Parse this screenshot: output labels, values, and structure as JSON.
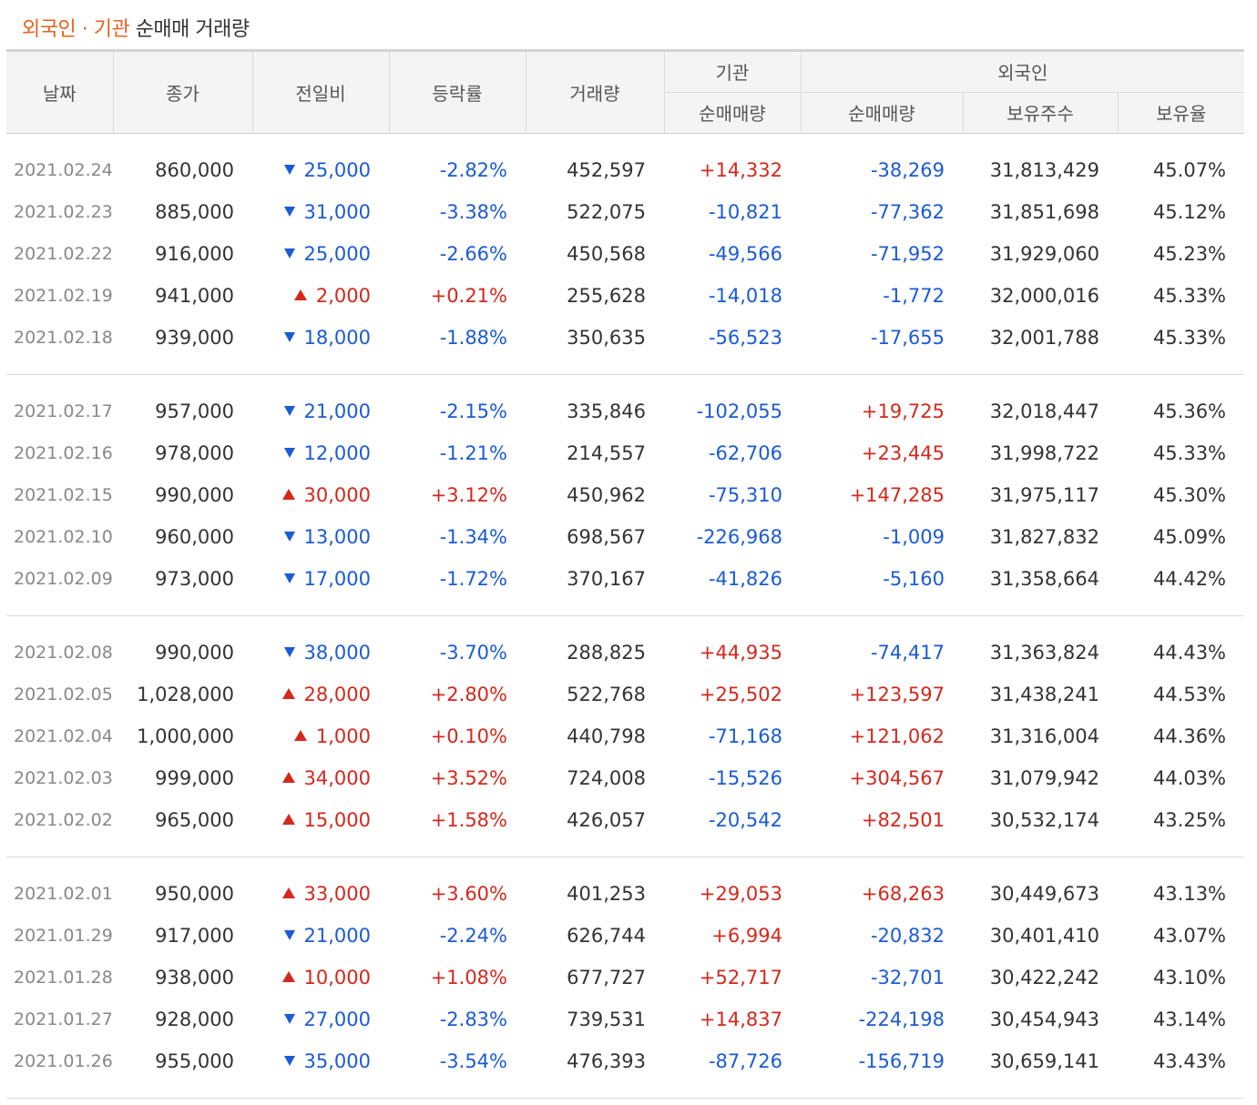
{
  "title": {
    "accent": "외국인 · 기관",
    "rest": "순매매 거래량"
  },
  "colors": {
    "accent": "#e8621c",
    "up": "#d4281c",
    "down": "#1a5bd6"
  },
  "headers": {
    "date": "날짜",
    "close": "종가",
    "change": "전일비",
    "rate": "등락률",
    "volume": "거래량",
    "institution": "기관",
    "institution_net": "순매매량",
    "foreign": "외국인",
    "foreign_net": "순매매량",
    "foreign_shares": "보유주수",
    "foreign_ratio": "보유율"
  },
  "groups": [
    [
      {
        "date": "2021.02.24",
        "close": "860,000",
        "dir": "down",
        "change": "25,000",
        "rate": "-2.82%",
        "volume": "452,597",
        "inst": "+14,332",
        "foreign": "-38,269",
        "shares": "31,813,429",
        "ratio": "45.07%"
      },
      {
        "date": "2021.02.23",
        "close": "885,000",
        "dir": "down",
        "change": "31,000",
        "rate": "-3.38%",
        "volume": "522,075",
        "inst": "-10,821",
        "foreign": "-77,362",
        "shares": "31,851,698",
        "ratio": "45.12%"
      },
      {
        "date": "2021.02.22",
        "close": "916,000",
        "dir": "down",
        "change": "25,000",
        "rate": "-2.66%",
        "volume": "450,568",
        "inst": "-49,566",
        "foreign": "-71,952",
        "shares": "31,929,060",
        "ratio": "45.23%"
      },
      {
        "date": "2021.02.19",
        "close": "941,000",
        "dir": "up",
        "change": "2,000",
        "rate": "+0.21%",
        "volume": "255,628",
        "inst": "-14,018",
        "foreign": "-1,772",
        "shares": "32,000,016",
        "ratio": "45.33%"
      },
      {
        "date": "2021.02.18",
        "close": "939,000",
        "dir": "down",
        "change": "18,000",
        "rate": "-1.88%",
        "volume": "350,635",
        "inst": "-56,523",
        "foreign": "-17,655",
        "shares": "32,001,788",
        "ratio": "45.33%"
      }
    ],
    [
      {
        "date": "2021.02.17",
        "close": "957,000",
        "dir": "down",
        "change": "21,000",
        "rate": "-2.15%",
        "volume": "335,846",
        "inst": "-102,055",
        "foreign": "+19,725",
        "shares": "32,018,447",
        "ratio": "45.36%"
      },
      {
        "date": "2021.02.16",
        "close": "978,000",
        "dir": "down",
        "change": "12,000",
        "rate": "-1.21%",
        "volume": "214,557",
        "inst": "-62,706",
        "foreign": "+23,445",
        "shares": "31,998,722",
        "ratio": "45.33%"
      },
      {
        "date": "2021.02.15",
        "close": "990,000",
        "dir": "up",
        "change": "30,000",
        "rate": "+3.12%",
        "volume": "450,962",
        "inst": "-75,310",
        "foreign": "+147,285",
        "shares": "31,975,117",
        "ratio": "45.30%"
      },
      {
        "date": "2021.02.10",
        "close": "960,000",
        "dir": "down",
        "change": "13,000",
        "rate": "-1.34%",
        "volume": "698,567",
        "inst": "-226,968",
        "foreign": "-1,009",
        "shares": "31,827,832",
        "ratio": "45.09%"
      },
      {
        "date": "2021.02.09",
        "close": "973,000",
        "dir": "down",
        "change": "17,000",
        "rate": "-1.72%",
        "volume": "370,167",
        "inst": "-41,826",
        "foreign": "-5,160",
        "shares": "31,358,664",
        "ratio": "44.42%"
      }
    ],
    [
      {
        "date": "2021.02.08",
        "close": "990,000",
        "dir": "down",
        "change": "38,000",
        "rate": "-3.70%",
        "volume": "288,825",
        "inst": "+44,935",
        "foreign": "-74,417",
        "shares": "31,363,824",
        "ratio": "44.43%"
      },
      {
        "date": "2021.02.05",
        "close": "1,028,000",
        "dir": "up",
        "change": "28,000",
        "rate": "+2.80%",
        "volume": "522,768",
        "inst": "+25,502",
        "foreign": "+123,597",
        "shares": "31,438,241",
        "ratio": "44.53%"
      },
      {
        "date": "2021.02.04",
        "close": "1,000,000",
        "dir": "up",
        "change": "1,000",
        "rate": "+0.10%",
        "volume": "440,798",
        "inst": "-71,168",
        "foreign": "+121,062",
        "shares": "31,316,004",
        "ratio": "44.36%"
      },
      {
        "date": "2021.02.03",
        "close": "999,000",
        "dir": "up",
        "change": "34,000",
        "rate": "+3.52%",
        "volume": "724,008",
        "inst": "-15,526",
        "foreign": "+304,567",
        "shares": "31,079,942",
        "ratio": "44.03%"
      },
      {
        "date": "2021.02.02",
        "close": "965,000",
        "dir": "up",
        "change": "15,000",
        "rate": "+1.58%",
        "volume": "426,057",
        "inst": "-20,542",
        "foreign": "+82,501",
        "shares": "30,532,174",
        "ratio": "43.25%"
      }
    ],
    [
      {
        "date": "2021.02.01",
        "close": "950,000",
        "dir": "up",
        "change": "33,000",
        "rate": "+3.60%",
        "volume": "401,253",
        "inst": "+29,053",
        "foreign": "+68,263",
        "shares": "30,449,673",
        "ratio": "43.13%"
      },
      {
        "date": "2021.01.29",
        "close": "917,000",
        "dir": "down",
        "change": "21,000",
        "rate": "-2.24%",
        "volume": "626,744",
        "inst": "+6,994",
        "foreign": "-20,832",
        "shares": "30,401,410",
        "ratio": "43.07%"
      },
      {
        "date": "2021.01.28",
        "close": "938,000",
        "dir": "up",
        "change": "10,000",
        "rate": "+1.08%",
        "volume": "677,727",
        "inst": "+52,717",
        "foreign": "-32,701",
        "shares": "30,422,242",
        "ratio": "43.10%"
      },
      {
        "date": "2021.01.27",
        "close": "928,000",
        "dir": "down",
        "change": "27,000",
        "rate": "-2.83%",
        "volume": "739,531",
        "inst": "+14,837",
        "foreign": "-224,198",
        "shares": "30,454,943",
        "ratio": "43.14%"
      },
      {
        "date": "2021.01.26",
        "close": "955,000",
        "dir": "down",
        "change": "35,000",
        "rate": "-3.54%",
        "volume": "476,393",
        "inst": "-87,726",
        "foreign": "-156,719",
        "shares": "30,659,141",
        "ratio": "43.43%"
      }
    ]
  ]
}
